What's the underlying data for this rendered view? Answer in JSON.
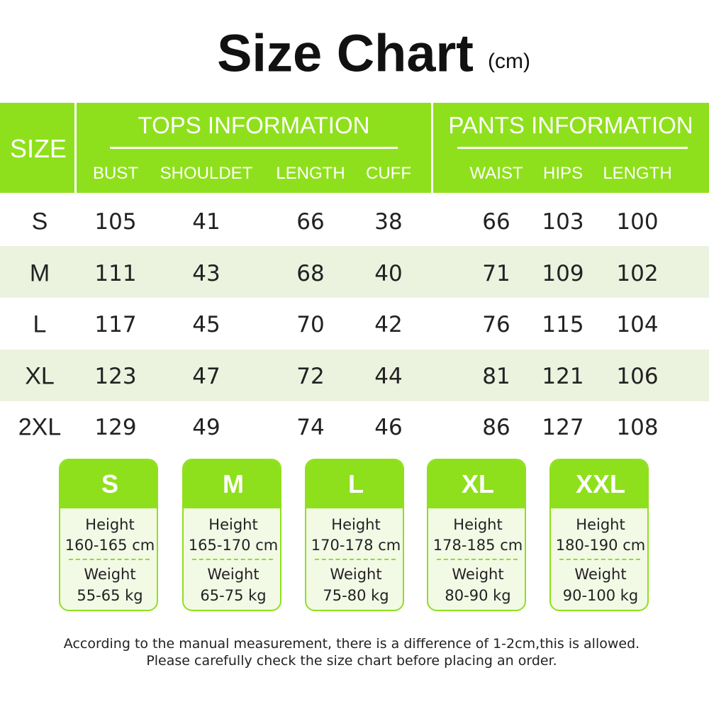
{
  "title": "Size Chart",
  "unit": "(cm)",
  "table": {
    "size_header": "SIZE",
    "groups": [
      {
        "title": "TOPS INFORMATION",
        "columns": [
          "BUST",
          "SHOULDET",
          "LENGTH",
          "CUFF"
        ]
      },
      {
        "title": "PANTS INFORMATION",
        "columns": [
          "WAIST",
          "HIPS",
          "LENGTH"
        ]
      }
    ],
    "rows": [
      [
        "S",
        105,
        41,
        66,
        38,
        66,
        103,
        100
      ],
      [
        "M",
        111,
        43,
        68,
        40,
        71,
        109,
        102
      ],
      [
        "L",
        117,
        45,
        70,
        42,
        76,
        115,
        104
      ],
      [
        "XL",
        123,
        47,
        72,
        44,
        81,
        121,
        106
      ],
      [
        "2XL",
        129,
        49,
        74,
        46,
        86,
        127,
        108
      ]
    ]
  },
  "cards": [
    {
      "size": "S",
      "height_label": "Height",
      "height": "160-165 cm",
      "weight_label": "Weight",
      "weight": "55-65 kg"
    },
    {
      "size": "M",
      "height_label": "Height",
      "height": "165-170 cm",
      "weight_label": "Weight",
      "weight": "65-75 kg"
    },
    {
      "size": "L",
      "height_label": "Height",
      "height": "170-178 cm",
      "weight_label": "Weight",
      "weight": "75-80 kg"
    },
    {
      "size": "XL",
      "height_label": "Height",
      "height": "178-185 cm",
      "weight_label": "Weight",
      "weight": "80-90 kg"
    },
    {
      "size": "XXL",
      "height_label": "Height",
      "height": "180-190 cm",
      "weight_label": "Weight",
      "weight": "90-100 kg"
    }
  ],
  "notes": [
    "According to the manual measurement, there is a difference of 1-2cm,this is allowed.",
    "Please carefully check the size chart before placing an order."
  ]
}
